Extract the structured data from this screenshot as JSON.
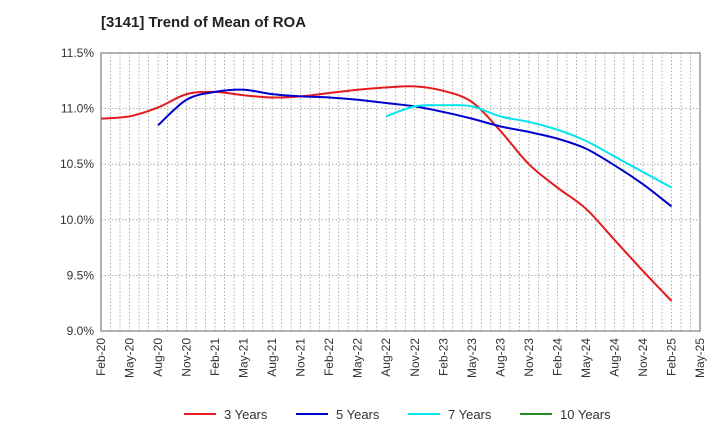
{
  "chart_data": {
    "type": "line",
    "title": "[3141]  Trend of Mean of ROA",
    "xlabel": "",
    "ylabel": "",
    "categories": [
      "Feb-20",
      "May-20",
      "Aug-20",
      "Nov-20",
      "Feb-21",
      "May-21",
      "Aug-21",
      "Nov-21",
      "Feb-22",
      "May-22",
      "Aug-22",
      "Nov-22",
      "Feb-23",
      "May-23",
      "Aug-23",
      "Nov-23",
      "Feb-24",
      "May-24",
      "Aug-24",
      "Nov-24",
      "Feb-25",
      "May-25"
    ],
    "y_ticks": [
      "11.5%",
      "11.0%",
      "10.5%",
      "10.0%",
      "9.5%",
      "9.0%"
    ],
    "ylim": [
      9.0,
      11.5
    ],
    "grid": true,
    "legend_position": "bottom",
    "series": [
      {
        "name": "3 Years",
        "color": "#e41a1c",
        "values": [
          10.91,
          10.93,
          11.01,
          11.13,
          11.15,
          11.12,
          11.1,
          11.11,
          11.14,
          11.17,
          11.19,
          11.2,
          11.16,
          11.06,
          10.8,
          10.5,
          10.29,
          10.1,
          9.82,
          9.54,
          9.27,
          null
        ]
      },
      {
        "name": "5 Years",
        "color": "#0000cc",
        "values": [
          null,
          null,
          10.85,
          11.08,
          11.15,
          11.17,
          11.13,
          11.11,
          11.1,
          11.08,
          11.05,
          11.02,
          10.97,
          10.91,
          10.84,
          10.79,
          10.73,
          10.64,
          10.49,
          10.32,
          10.12,
          null
        ]
      },
      {
        "name": "7 Years",
        "color": "#00e5ee",
        "values": [
          null,
          null,
          null,
          null,
          null,
          null,
          null,
          null,
          null,
          null,
          10.93,
          11.02,
          11.03,
          11.02,
          10.93,
          10.88,
          10.81,
          10.71,
          10.57,
          10.43,
          10.29,
          null
        ]
      },
      {
        "name": "10 Years",
        "color": "#228b22",
        "values": [
          null,
          null,
          null,
          null,
          null,
          null,
          null,
          null,
          null,
          null,
          null,
          null,
          null,
          null,
          null,
          null,
          null,
          null,
          null,
          null,
          null,
          null
        ]
      }
    ]
  }
}
